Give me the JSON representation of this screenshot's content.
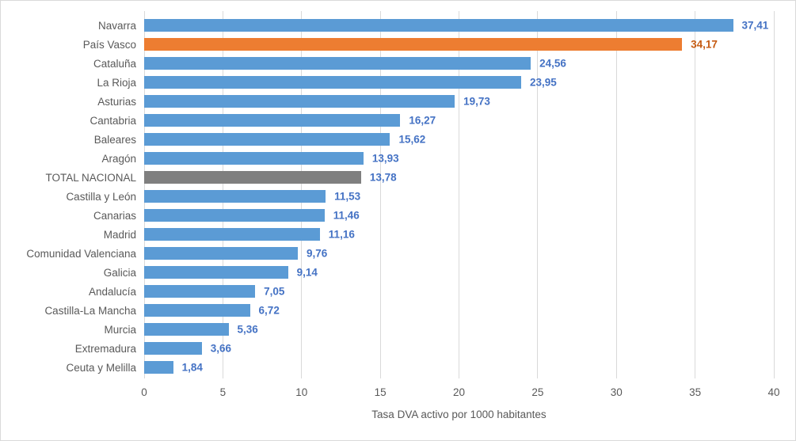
{
  "chart_data": {
    "type": "bar",
    "orientation": "horizontal",
    "title": "",
    "xlabel": "Tasa DVA activo por 1000 habitantes",
    "ylabel": "",
    "xlim": [
      0,
      40
    ],
    "xticks": [
      "0",
      "5",
      "10",
      "15",
      "20",
      "25",
      "30",
      "35",
      "40"
    ],
    "grid": true,
    "legend": false,
    "bars": [
      {
        "category": "Navarra",
        "value": 37.41,
        "display": "37,41",
        "role": "default"
      },
      {
        "category": "País Vasco",
        "value": 34.17,
        "display": "34,17",
        "role": "highlight"
      },
      {
        "category": "Cataluña",
        "value": 24.56,
        "display": "24,56",
        "role": "default"
      },
      {
        "category": "La Rioja",
        "value": 23.95,
        "display": "23,95",
        "role": "default"
      },
      {
        "category": "Asturias",
        "value": 19.73,
        "display": "19,73",
        "role": "default"
      },
      {
        "category": "Cantabria",
        "value": 16.27,
        "display": "16,27",
        "role": "default"
      },
      {
        "category": "Baleares",
        "value": 15.62,
        "display": "15,62",
        "role": "default"
      },
      {
        "category": "Aragón",
        "value": 13.93,
        "display": "13,93",
        "role": "default"
      },
      {
        "category": "TOTAL NACIONAL",
        "value": 13.78,
        "display": "13,78",
        "role": "total"
      },
      {
        "category": "Castilla y León",
        "value": 11.53,
        "display": "11,53",
        "role": "default"
      },
      {
        "category": "Canarias",
        "value": 11.46,
        "display": "11,46",
        "role": "default"
      },
      {
        "category": "Madrid",
        "value": 11.16,
        "display": "11,16",
        "role": "default"
      },
      {
        "category": "Comunidad Valenciana",
        "value": 9.76,
        "display": "9,76",
        "role": "default"
      },
      {
        "category": "Galicia",
        "value": 9.14,
        "display": "9,14",
        "role": "default"
      },
      {
        "category": "Andalucía",
        "value": 7.05,
        "display": "7,05",
        "role": "default"
      },
      {
        "category": "Castilla-La Mancha",
        "value": 6.72,
        "display": "6,72",
        "role": "default"
      },
      {
        "category": "Murcia",
        "value": 5.36,
        "display": "5,36",
        "role": "default"
      },
      {
        "category": "Extremadura",
        "value": 3.66,
        "display": "3,66",
        "role": "default"
      },
      {
        "category": "Ceuta y Melilla",
        "value": 1.84,
        "display": "1,84",
        "role": "default"
      }
    ]
  },
  "colors": {
    "bar_default": "#5B9BD5",
    "bar_highlight": "#ED7D31",
    "bar_total": "#7F7F7F",
    "value_label_default": "#4472C4",
    "value_label_highlight": "#C55A11",
    "gridline": "#D9D9D9",
    "axis_text": "#595959",
    "category_text": "#595959",
    "frame_border": "#D9D9D9",
    "background": "#FFFFFF"
  }
}
